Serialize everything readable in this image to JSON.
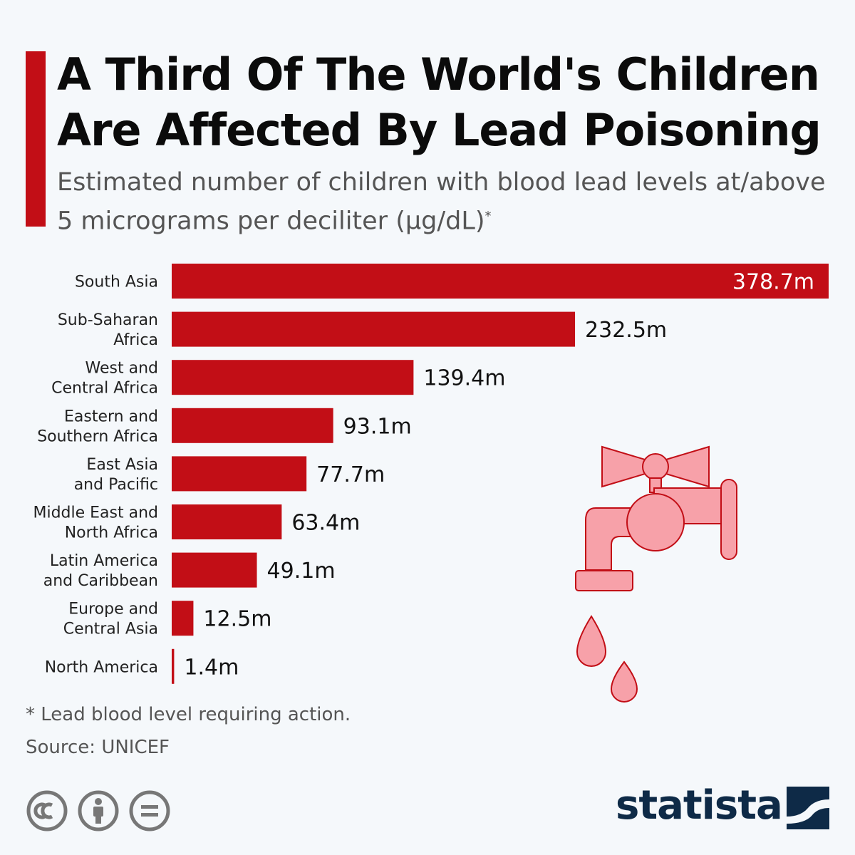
{
  "header": {
    "title": "A Third Of The World's Children Are Affected By Lead Poisoning",
    "subtitle": "Estimated number of children with blood lead levels at/above 5 micrograms per deciliter (µg/dL)",
    "subtitle_mark": "*"
  },
  "chart_data": {
    "type": "bar",
    "orientation": "horizontal",
    "title": "A Third Of The World's Children Are Affected By Lead Poisoning",
    "subtitle": "Estimated number of children with blood lead levels at/above 5 micrograms per deciliter (µg/dL)*",
    "unit_suffix": "m",
    "categories": [
      [
        "South Asia"
      ],
      [
        "Sub-Saharan",
        "Africa"
      ],
      [
        "West and",
        "Central Africa"
      ],
      [
        "Eastern and",
        "Southern Africa"
      ],
      [
        "East Asia",
        "and Pacific"
      ],
      [
        "Middle East and",
        "North Africa"
      ],
      [
        "Latin America",
        "and Caribbean"
      ],
      [
        "Europe and",
        "Central Asia"
      ],
      [
        "North America"
      ]
    ],
    "values": [
      378.7,
      232.5,
      139.4,
      93.1,
      77.7,
      63.4,
      49.1,
      12.5,
      1.4
    ],
    "value_labels": [
      "378.7m",
      "232.5m",
      "139.4m",
      "93.1m",
      "77.7m",
      "63.4m",
      "49.1m",
      "12.5m",
      "1.4m"
    ],
    "xlim": [
      0,
      378.7
    ],
    "grid": false,
    "legend": "none",
    "bar_color": "#c20e16"
  },
  "footer": {
    "footnote": "* Lead blood level requiring action.",
    "source": "Source: UNICEF",
    "brand": "statista",
    "license_icons": [
      "cc-icon",
      "attribution-icon",
      "no-derivatives-icon"
    ]
  },
  "colors": {
    "accent": "#c20e16",
    "faucet_fill": "#f7a1a9",
    "faucet_stroke": "#c20e16",
    "brand": "#0e2a47",
    "icon_gray": "#777777"
  }
}
